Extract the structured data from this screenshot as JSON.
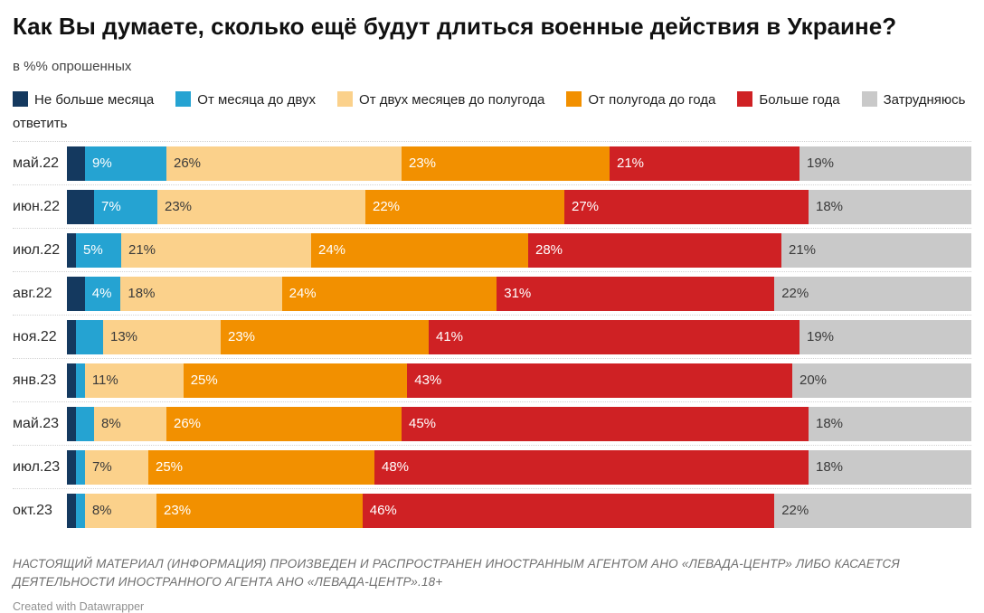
{
  "header": {
    "title": "Как Вы думаете, сколько ещё будут длиться военные действия в Украине?",
    "subtitle": "в %% опрошенных"
  },
  "footer": {
    "disclaimer": "НАСТОЯЩИЙ МАТЕРИАЛ (ИНФОРМАЦИЯ) ПРОИЗВЕДЕН И РАСПРОСТРАНЕН ИНОСТРАННЫМ АГЕНТОМ АНО «ЛЕВАДА-ЦЕНТР» ЛИБО КАСАЕТСЯ ДЕЯТЕЛЬНОСТИ ИНОСТРАННОГО АГЕНТА АНО «ЛЕВАДА-ЦЕНТР».18+",
    "credit": "Created with Datawrapper"
  },
  "chart_data": {
    "type": "bar",
    "variant": "horizontal-stacked",
    "unit": "%",
    "legend_position": "top",
    "grid": false,
    "xlim": [
      0,
      100
    ],
    "label_min_value": 4,
    "categories": [
      "май.22",
      "июн.22",
      "июл.22",
      "авг.22",
      "ноя.22",
      "янв.23",
      "май.23",
      "июл.23",
      "окт.23"
    ],
    "series": [
      {
        "name": "Не больше месяца",
        "color": "#14395f",
        "label_color": "#ffffff",
        "values": [
          2,
          3,
          1,
          2,
          1,
          1,
          1,
          1,
          1
        ]
      },
      {
        "name": "От месяца до двух",
        "color": "#25a3d2",
        "label_color": "#ffffff",
        "values": [
          9,
          7,
          5,
          4,
          3,
          1,
          2,
          1,
          1
        ]
      },
      {
        "name": "От двух месяцев до полугода",
        "color": "#fbd18b",
        "label_color": "#3a3a3a",
        "values": [
          26,
          23,
          21,
          18,
          13,
          11,
          8,
          7,
          8
        ]
      },
      {
        "name": "От полугода до года",
        "color": "#f29000",
        "label_color": "#ffffff",
        "values": [
          23,
          22,
          24,
          24,
          23,
          25,
          26,
          25,
          23
        ]
      },
      {
        "name": "Больше года",
        "color": "#cf2124",
        "label_color": "#ffffff",
        "values": [
          21,
          27,
          28,
          31,
          41,
          43,
          45,
          48,
          46
        ]
      },
      {
        "name": "Затрудняюсь ответить",
        "color": "#c9c9c9",
        "label_color": "#3a3a3a",
        "values": [
          19,
          18,
          21,
          22,
          19,
          20,
          18,
          18,
          22
        ]
      }
    ]
  }
}
